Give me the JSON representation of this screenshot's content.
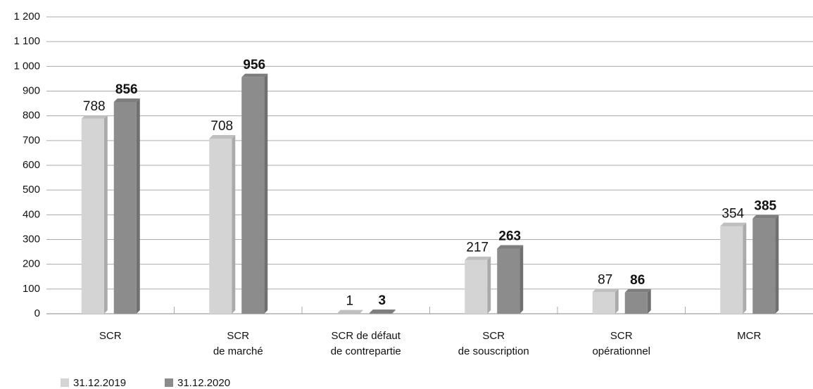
{
  "chart_data": {
    "type": "bar",
    "categories": [
      [
        "SCR"
      ],
      [
        "SCR",
        "de marché"
      ],
      [
        "SCR de défaut",
        "de contrepartie"
      ],
      [
        "SCR",
        "de souscription"
      ],
      [
        "SCR",
        "opérationnel"
      ],
      [
        "MCR"
      ]
    ],
    "series": [
      {
        "name": "31.12.2019",
        "color": "#d4d4d4",
        "values": [
          788,
          708,
          1,
          217,
          87,
          354
        ]
      },
      {
        "name": "31.12.2020",
        "color": "#8c8c8c",
        "values": [
          856,
          956,
          3,
          263,
          86,
          385
        ]
      }
    ],
    "ylim": [
      0,
      1200
    ],
    "yticks": [
      0,
      100,
      200,
      300,
      400,
      500,
      600,
      700,
      800,
      900,
      {
        "value": 1000,
        "label": "1 000"
      },
      {
        "value": 1100,
        "label": "1 100"
      },
      {
        "value": 1200,
        "label": "1 200"
      }
    ],
    "grid": true,
    "legend": "bottom-left"
  }
}
